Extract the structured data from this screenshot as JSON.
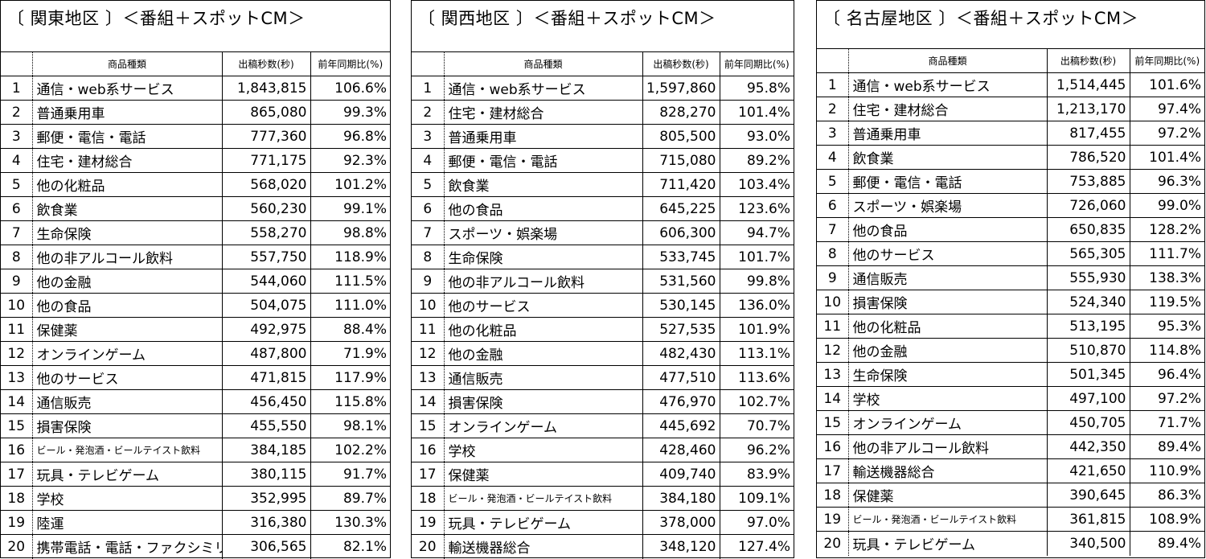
{
  "headers": {
    "rank": "",
    "category": "商品種類",
    "seconds": "出稿秒数(秒)",
    "ratio": "前年同期比(%)"
  },
  "panels": [
    {
      "title": "〔 関東地区 〕＜番組＋スポットCM＞",
      "rows": [
        {
          "rank": "1",
          "category": "通信・web系サービス",
          "seconds": "1,843,815",
          "ratio": "106.6%"
        },
        {
          "rank": "2",
          "category": "普通乗用車",
          "seconds": "865,080",
          "ratio": "99.3%"
        },
        {
          "rank": "3",
          "category": "郵便・電信・電話",
          "seconds": "777,360",
          "ratio": "96.8%"
        },
        {
          "rank": "4",
          "category": "住宅・建材総合",
          "seconds": "771,175",
          "ratio": "92.3%"
        },
        {
          "rank": "5",
          "category": "他の化粧品",
          "seconds": "568,020",
          "ratio": "101.2%"
        },
        {
          "rank": "6",
          "category": "飲食業",
          "seconds": "560,230",
          "ratio": "99.1%"
        },
        {
          "rank": "7",
          "category": "生命保険",
          "seconds": "558,270",
          "ratio": "98.8%"
        },
        {
          "rank": "8",
          "category": "他の非アルコール飲料",
          "seconds": "557,750",
          "ratio": "118.9%"
        },
        {
          "rank": "9",
          "category": "他の金融",
          "seconds": "544,060",
          "ratio": "111.5%"
        },
        {
          "rank": "10",
          "category": "他の食品",
          "seconds": "504,075",
          "ratio": "111.0%"
        },
        {
          "rank": "11",
          "category": "保健薬",
          "seconds": "492,975",
          "ratio": "88.4%"
        },
        {
          "rank": "12",
          "category": "オンラインゲーム",
          "seconds": "487,800",
          "ratio": "71.9%"
        },
        {
          "rank": "13",
          "category": "他のサービス",
          "seconds": "471,815",
          "ratio": "117.9%"
        },
        {
          "rank": "14",
          "category": "通信販売",
          "seconds": "456,450",
          "ratio": "115.8%"
        },
        {
          "rank": "15",
          "category": "損害保険",
          "seconds": "455,550",
          "ratio": "98.1%"
        },
        {
          "rank": "16",
          "category": "ビール・発泡酒・ビールテイスト飲料",
          "seconds": "384,185",
          "ratio": "102.2%",
          "small": true
        },
        {
          "rank": "17",
          "category": "玩具・テレビゲーム",
          "seconds": "380,115",
          "ratio": "91.7%"
        },
        {
          "rank": "18",
          "category": "学校",
          "seconds": "352,995",
          "ratio": "89.7%"
        },
        {
          "rank": "19",
          "category": "陸運",
          "seconds": "316,380",
          "ratio": "130.3%"
        },
        {
          "rank": "20",
          "category": "携帯電話・電話・ファクシミリ",
          "seconds": "306,565",
          "ratio": "82.1%"
        }
      ]
    },
    {
      "title": "〔 関西地区 〕＜番組＋スポットCM＞",
      "rows": [
        {
          "rank": "1",
          "category": "通信・web系サービス",
          "seconds": "1,597,860",
          "ratio": "95.8%"
        },
        {
          "rank": "2",
          "category": "住宅・建材総合",
          "seconds": "828,270",
          "ratio": "101.4%"
        },
        {
          "rank": "3",
          "category": "普通乗用車",
          "seconds": "805,500",
          "ratio": "93.0%"
        },
        {
          "rank": "4",
          "category": "郵便・電信・電話",
          "seconds": "715,080",
          "ratio": "89.2%"
        },
        {
          "rank": "5",
          "category": "飲食業",
          "seconds": "711,420",
          "ratio": "103.4%"
        },
        {
          "rank": "6",
          "category": "他の食品",
          "seconds": "645,225",
          "ratio": "123.6%"
        },
        {
          "rank": "7",
          "category": "スポーツ・娯楽場",
          "seconds": "606,300",
          "ratio": "94.7%"
        },
        {
          "rank": "8",
          "category": "生命保険",
          "seconds": "533,745",
          "ratio": "101.7%"
        },
        {
          "rank": "9",
          "category": "他の非アルコール飲料",
          "seconds": "531,560",
          "ratio": "99.8%"
        },
        {
          "rank": "10",
          "category": "他のサービス",
          "seconds": "530,145",
          "ratio": "136.0%"
        },
        {
          "rank": "11",
          "category": "他の化粧品",
          "seconds": "527,535",
          "ratio": "101.9%"
        },
        {
          "rank": "12",
          "category": "他の金融",
          "seconds": "482,430",
          "ratio": "113.1%"
        },
        {
          "rank": "13",
          "category": "通信販売",
          "seconds": "477,510",
          "ratio": "113.6%"
        },
        {
          "rank": "14",
          "category": "損害保険",
          "seconds": "476,970",
          "ratio": "102.7%"
        },
        {
          "rank": "15",
          "category": "オンラインゲーム",
          "seconds": "445,692",
          "ratio": "70.7%"
        },
        {
          "rank": "16",
          "category": "学校",
          "seconds": "428,460",
          "ratio": "96.2%"
        },
        {
          "rank": "17",
          "category": "保健薬",
          "seconds": "409,740",
          "ratio": "83.9%"
        },
        {
          "rank": "18",
          "category": "ビール・発泡酒・ビールテイスト飲料",
          "seconds": "384,180",
          "ratio": "109.1%",
          "small": true
        },
        {
          "rank": "19",
          "category": "玩具・テレビゲーム",
          "seconds": "378,000",
          "ratio": "97.0%"
        },
        {
          "rank": "20",
          "category": "輸送機器総合",
          "seconds": "348,120",
          "ratio": "127.4%"
        }
      ]
    },
    {
      "title": "〔 名古屋地区 〕＜番組＋スポットCM＞",
      "rows": [
        {
          "rank": "1",
          "category": "通信・web系サービス",
          "seconds": "1,514,445",
          "ratio": "101.6%"
        },
        {
          "rank": "2",
          "category": "住宅・建材総合",
          "seconds": "1,213,170",
          "ratio": "97.4%"
        },
        {
          "rank": "3",
          "category": "普通乗用車",
          "seconds": "817,455",
          "ratio": "97.2%"
        },
        {
          "rank": "4",
          "category": "飲食業",
          "seconds": "786,520",
          "ratio": "101.4%"
        },
        {
          "rank": "5",
          "category": "郵便・電信・電話",
          "seconds": "753,885",
          "ratio": "96.3%"
        },
        {
          "rank": "6",
          "category": "スポーツ・娯楽場",
          "seconds": "726,060",
          "ratio": "99.0%"
        },
        {
          "rank": "7",
          "category": "他の食品",
          "seconds": "650,835",
          "ratio": "128.2%"
        },
        {
          "rank": "8",
          "category": "他のサービス",
          "seconds": "565,305",
          "ratio": "111.7%"
        },
        {
          "rank": "9",
          "category": "通信販売",
          "seconds": "555,930",
          "ratio": "138.3%"
        },
        {
          "rank": "10",
          "category": "損害保険",
          "seconds": "524,340",
          "ratio": "119.5%"
        },
        {
          "rank": "11",
          "category": "他の化粧品",
          "seconds": "513,195",
          "ratio": "95.3%"
        },
        {
          "rank": "12",
          "category": "他の金融",
          "seconds": "510,870",
          "ratio": "114.8%"
        },
        {
          "rank": "13",
          "category": "生命保険",
          "seconds": "501,345",
          "ratio": "96.4%"
        },
        {
          "rank": "14",
          "category": "学校",
          "seconds": "497,100",
          "ratio": "97.2%"
        },
        {
          "rank": "15",
          "category": "オンラインゲーム",
          "seconds": "450,705",
          "ratio": "71.7%"
        },
        {
          "rank": "16",
          "category": "他の非アルコール飲料",
          "seconds": "442,350",
          "ratio": "89.4%"
        },
        {
          "rank": "17",
          "category": "輸送機器総合",
          "seconds": "421,650",
          "ratio": "110.9%"
        },
        {
          "rank": "18",
          "category": "保健薬",
          "seconds": "390,645",
          "ratio": "86.3%"
        },
        {
          "rank": "19",
          "category": "ビール・発泡酒・ビールテイスト飲料",
          "seconds": "361,815",
          "ratio": "108.9%",
          "small": true
        },
        {
          "rank": "20",
          "category": "玩具・テレビゲーム",
          "seconds": "340,500",
          "ratio": "89.4%"
        }
      ]
    }
  ]
}
